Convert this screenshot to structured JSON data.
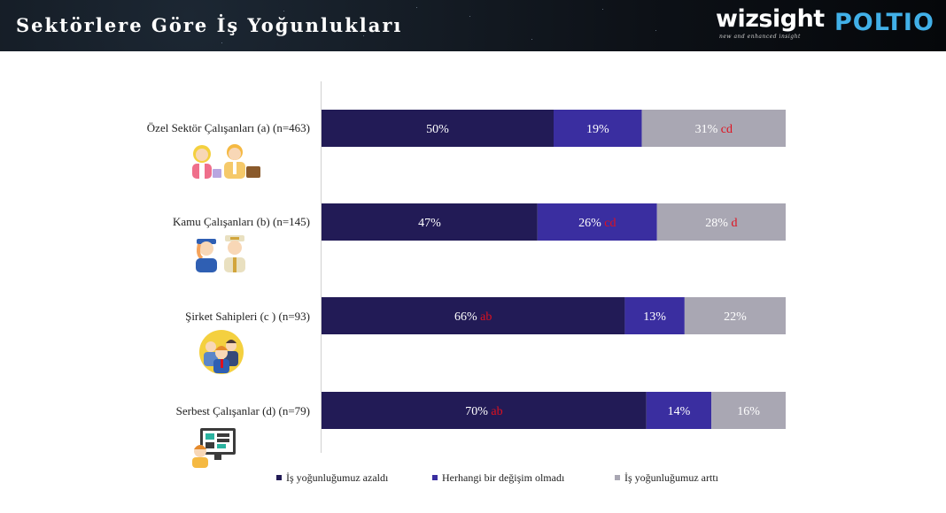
{
  "header": {
    "title": "Sektörlere Göre İş Yoğunlukları",
    "logo_wizsight": "wizsight",
    "logo_wizsight_tagline": "new and enhanced insight",
    "logo_poltio": "POLTIO"
  },
  "colors": {
    "azaldi": "#221b56",
    "degisim_yok": "#3a2ea0",
    "artti": "#a9a7b3",
    "significance": "#e0101e"
  },
  "icons": {
    "ozel": "office-workers-icon",
    "kamu": "police-and-officer-icon",
    "sirket": "business-team-icon",
    "serbest": "freelancer-computer-icon"
  },
  "chart_data": {
    "type": "bar",
    "orientation": "horizontal",
    "stacked": true,
    "percent_stacked": true,
    "categories": [
      "Özel Sektör Çalışanları (a) (n=463)",
      "Kamu Çalışanları (b) (n=145)",
      "Şirket Sahipleri (c ) (n=93)",
      "Serbest Çalışanlar (d) (n=79)"
    ],
    "series": [
      {
        "name": "İş yoğunluğumuz azaldı",
        "values": [
          50,
          47,
          66,
          70
        ],
        "significance": [
          "",
          "",
          "ab",
          "ab"
        ]
      },
      {
        "name": "Herhangi bir değişim olmadı",
        "values": [
          19,
          26,
          13,
          14
        ],
        "significance": [
          "",
          "cd",
          "",
          ""
        ]
      },
      {
        "name": "İş yoğunluğumuz arttı",
        "values": [
          31,
          28,
          22,
          16
        ],
        "significance": [
          "cd",
          "d",
          "",
          ""
        ]
      }
    ],
    "legend_position": "bottom",
    "grid": false
  }
}
